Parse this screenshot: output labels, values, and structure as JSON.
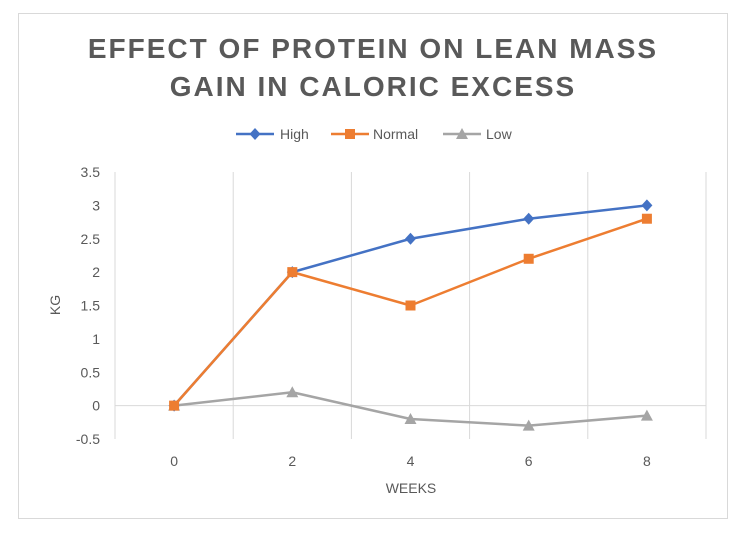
{
  "chart_data": {
    "type": "line",
    "title_lines": [
      "EFFECT OF PROTEIN ON LEAN MASS",
      "GAIN IN CALORIC EXCESS"
    ],
    "xlabel": "WEEKS",
    "ylabel": "KG",
    "x": [
      0,
      2,
      4,
      6,
      8
    ],
    "x_tick_labels": [
      "0",
      "2",
      "4",
      "6",
      "8"
    ],
    "ylim": [
      -0.5,
      3.5
    ],
    "y_ticks": [
      -0.5,
      0,
      0.5,
      1,
      1.5,
      2,
      2.5,
      3,
      3.5
    ],
    "y_tick_labels": [
      "-0.5",
      "0",
      "0.5",
      "1",
      "1.5",
      "2",
      "2.5",
      "3",
      "3.5"
    ],
    "grid": "vertical",
    "legend_position": "top",
    "series": [
      {
        "name": "High",
        "values": [
          0,
          2,
          2.5,
          2.8,
          3
        ],
        "color": "#4472c4",
        "marker": "diamond"
      },
      {
        "name": "Normal",
        "values": [
          0,
          2,
          1.5,
          2.2,
          2.8
        ],
        "color": "#ed7d31",
        "marker": "square"
      },
      {
        "name": "Low",
        "values": [
          0,
          0.2,
          -0.2,
          -0.3,
          -0.15
        ],
        "color": "#a5a5a5",
        "marker": "triangle"
      }
    ]
  }
}
